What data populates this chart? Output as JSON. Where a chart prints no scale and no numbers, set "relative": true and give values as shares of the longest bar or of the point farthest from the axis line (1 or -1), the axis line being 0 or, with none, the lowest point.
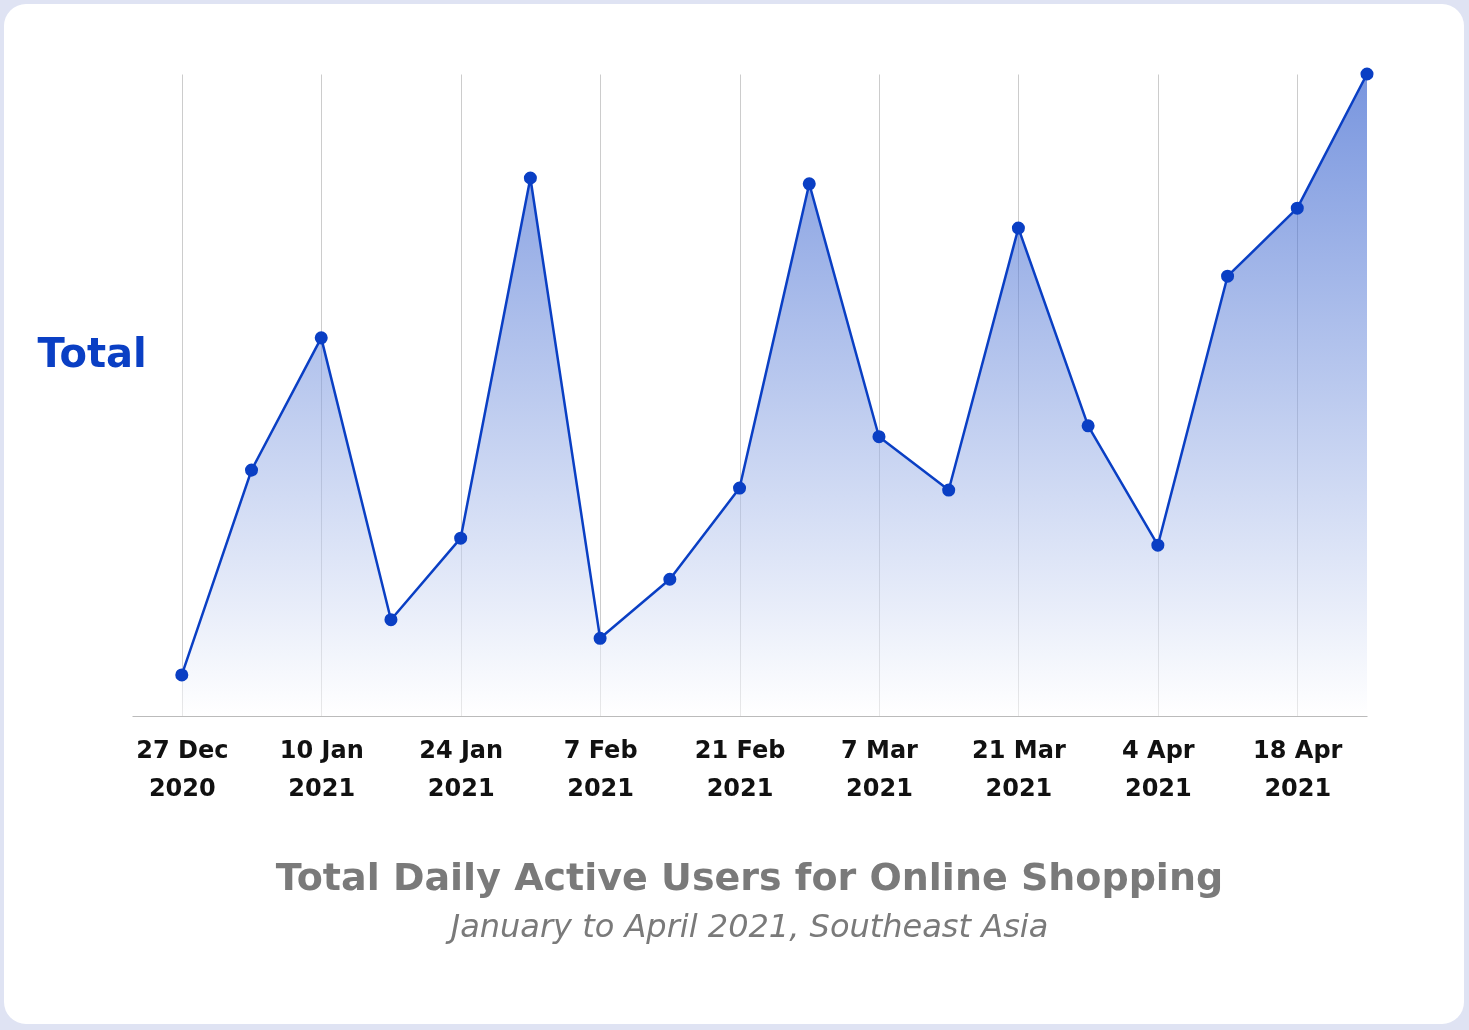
{
  "chart_data": {
    "type": "area",
    "title": "Total Daily Active Users for Online Shopping",
    "subtitle": "January to April 2021, Southeast Asia",
    "ylabel": "Total",
    "relative": true,
    "grid": "x",
    "marker": "circle",
    "line_style": "solid",
    "x": [
      "2020-12-27",
      "2021-01-03",
      "2021-01-10",
      "2021-01-17",
      "2021-01-24",
      "2021-01-31",
      "2021-02-07",
      "2021-02-14",
      "2021-02-21",
      "2021-02-28",
      "2021-03-07",
      "2021-03-14",
      "2021-03-21",
      "2021-03-28",
      "2021-04-04",
      "2021-04-11",
      "2021-04-18",
      "2021-04-25"
    ],
    "xlim": [
      "2020-12-22",
      "2021-04-25"
    ],
    "xticks": [
      {
        "value": "2020-12-27",
        "label": "27 Dec 2020"
      },
      {
        "value": "2021-01-10",
        "label": "10 Jan 2021"
      },
      {
        "value": "2021-01-24",
        "label": "24 Jan 2021"
      },
      {
        "value": "2021-02-07",
        "label": "7 Feb 2021"
      },
      {
        "value": "2021-02-21",
        "label": "21 Feb 2021"
      },
      {
        "value": "2021-03-07",
        "label": "7 Mar 2021"
      },
      {
        "value": "2021-03-21",
        "label": "21 Mar 2021"
      },
      {
        "value": "2021-04-04",
        "label": "4 Apr 2021"
      },
      {
        "value": "2021-04-18",
        "label": "18 Apr 2021"
      }
    ],
    "series": [
      {
        "color": "#0a3fc4",
        "values": [
          0.064,
          0.383,
          0.589,
          0.15,
          0.277,
          0.838,
          0.121,
          0.213,
          0.355,
          0.829,
          0.435,
          0.352,
          0.76,
          0.452,
          0.266,
          0.685,
          0.791,
          1
        ]
      }
    ]
  }
}
